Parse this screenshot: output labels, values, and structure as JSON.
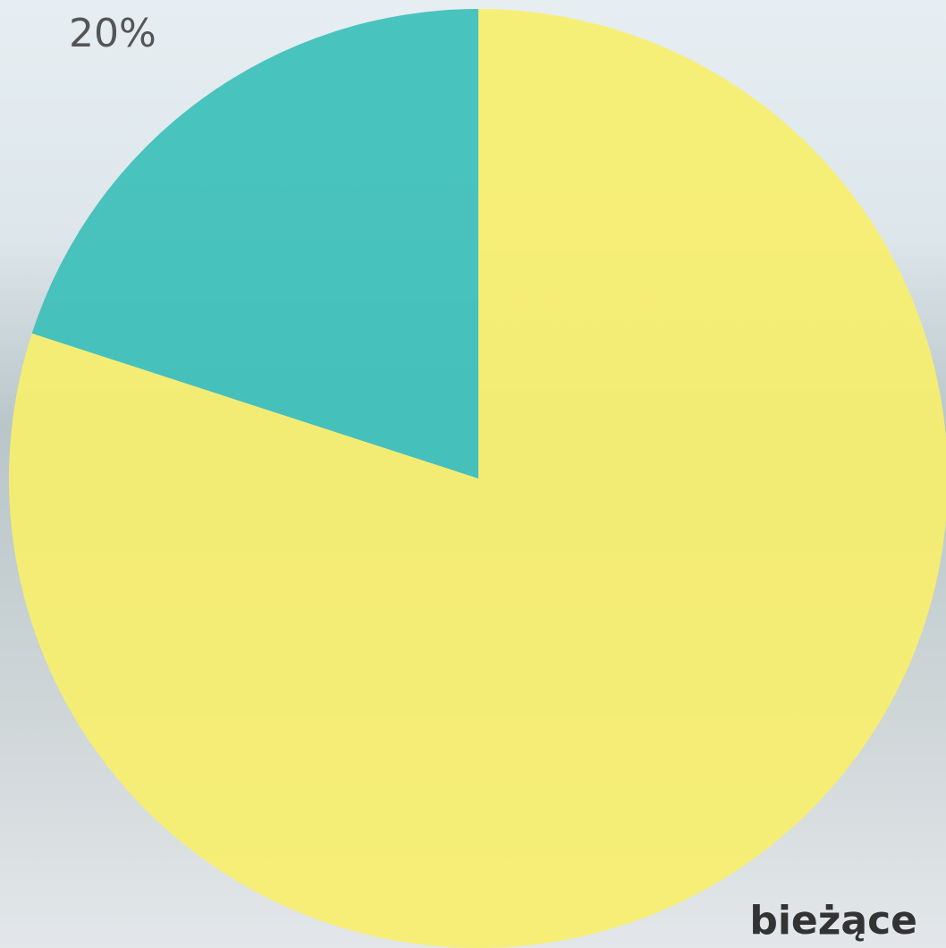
{
  "chart_data": {
    "type": "pie",
    "categories": [
      "bieżące",
      null
    ],
    "values": [
      80,
      20
    ],
    "value_labels": [
      null,
      "20%"
    ],
    "colors": [
      "#f7ef6c",
      "#3cbfb8"
    ]
  }
}
